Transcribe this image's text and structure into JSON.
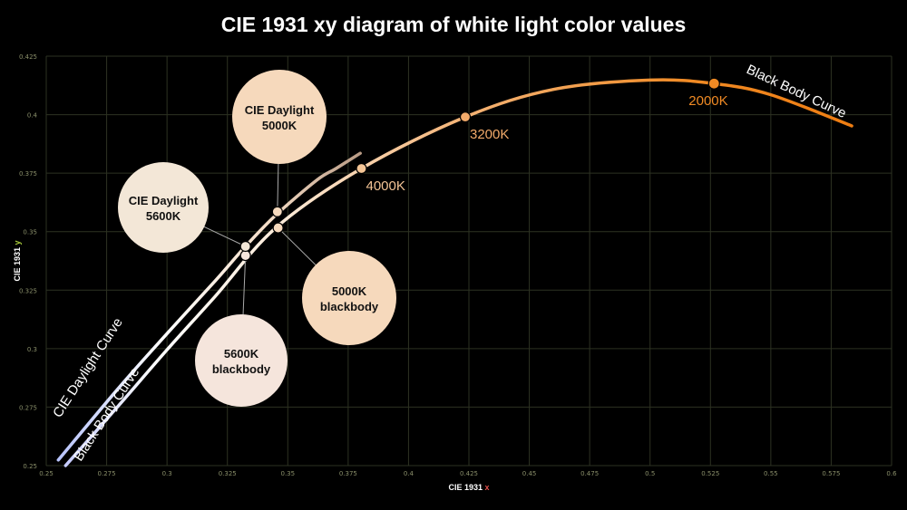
{
  "chart_data": {
    "type": "line",
    "title": "CIE 1931 xy diagram of white light color values",
    "xlabel": "CIE 1931",
    "xlabel_var": "x",
    "ylabel": "CIE 1931",
    "ylabel_var": "y",
    "xlim": [
      0.25,
      0.6
    ],
    "ylim": [
      0.25,
      0.425
    ],
    "grid": true,
    "x_ticks": [
      "0.25",
      "0.275",
      "0.3",
      "0.325",
      "0.35",
      "0.375",
      "0.4",
      "0.425",
      "0.45",
      "0.475",
      "0.5",
      "0.525",
      "0.55",
      "0.575",
      "0.6"
    ],
    "y_ticks": [
      "0.25",
      "0.275",
      "0.3",
      "0.325",
      "0.35",
      "0.375",
      "0.4",
      "0.425"
    ],
    "series": [
      {
        "name": "Black Body Curve",
        "color": "#f08a24",
        "x": [
          0.258,
          0.28,
          0.3,
          0.32,
          0.345,
          0.3805,
          0.4235,
          0.46,
          0.5,
          0.5265,
          0.55,
          0.5835
        ],
        "y": [
          0.25,
          0.2757,
          0.2995,
          0.3224,
          0.3516,
          0.377,
          0.399,
          0.4108,
          0.4148,
          0.4133,
          0.4085,
          0.3952
        ]
      },
      {
        "name": "CIE Daylight Curve",
        "color": "#b8c4ff",
        "x": [
          0.255,
          0.28,
          0.3,
          0.32,
          0.3325,
          0.345,
          0.362,
          0.37,
          0.38
        ],
        "y": [
          0.2524,
          0.2832,
          0.3064,
          0.329,
          0.3437,
          0.357,
          0.372,
          0.377,
          0.3835
        ]
      }
    ],
    "points": [
      {
        "label": "2000K",
        "x": 0.5265,
        "y": 0.4133,
        "color": "#f08a24"
      },
      {
        "label": "3200K",
        "x": 0.4235,
        "y": 0.399,
        "color": "#f2aa6a"
      },
      {
        "label": "4000K",
        "x": 0.3805,
        "y": 0.377,
        "color": "#f4c596"
      },
      {
        "label": "5000K blackbody",
        "x": 0.346,
        "y": 0.3516,
        "color": "#f6d9bc"
      },
      {
        "label": "5600K blackbody",
        "x": 0.3325,
        "y": 0.3398,
        "color": "#f5e5dc"
      },
      {
        "label": "CIE Daylight 5000K",
        "x": 0.3457,
        "y": 0.3585,
        "color": "#f6d9bc"
      },
      {
        "label": "CIE Daylight 5600K",
        "x": 0.3325,
        "y": 0.3437,
        "color": "#f3e7d7"
      }
    ],
    "callouts": [
      {
        "key": "daylight5000",
        "lines": [
          "CIE Daylight",
          "5000K"
        ],
        "fill": "#f6d9bc"
      },
      {
        "key": "daylight5600",
        "lines": [
          "CIE Daylight",
          "5600K"
        ],
        "fill": "#f3e7d7"
      },
      {
        "key": "bb5000",
        "lines": [
          "5000K",
          "blackbody"
        ],
        "fill": "#f6d9bc"
      },
      {
        "key": "bb5600",
        "lines": [
          "5600K",
          "blackbody"
        ],
        "fill": "#f5e5dc"
      }
    ],
    "curve_labels": {
      "daylight": "CIE Daylight Curve",
      "blackbody_lower": "Black Body Curve",
      "blackbody_upper": "Black Body Curve"
    },
    "axis_var_color": "#e2504c",
    "axis_var_color_y": "#a7c83a"
  }
}
